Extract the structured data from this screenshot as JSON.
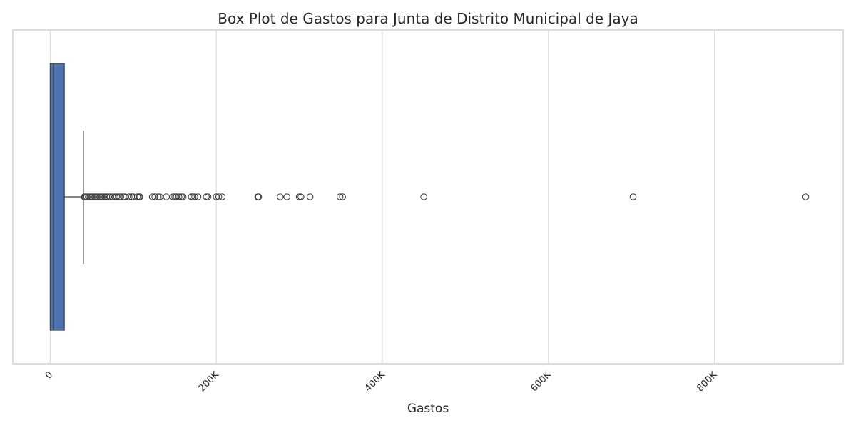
{
  "chart_data": {
    "type": "box",
    "title": "Box Plot de Gastos para Junta de Distrito Municipal de Jaya",
    "xlabel": "Gastos",
    "ylabel": "",
    "orientation": "horizontal",
    "xlim": [
      -45000,
      955000
    ],
    "x_ticks": [
      0,
      200000,
      400000,
      600000,
      800000
    ],
    "x_tick_labels": [
      "0",
      "200K",
      "400K",
      "600K",
      "800K"
    ],
    "grid": "vertical",
    "box_color": "#4c72b0",
    "series": [
      {
        "min": 0,
        "q1": 0,
        "median": 4000,
        "q3": 17000,
        "whisker_high": 40000,
        "outliers": [
          41000,
          42000,
          44000,
          46000,
          48000,
          50000,
          52000,
          54000,
          56000,
          58000,
          60000,
          62000,
          64000,
          66000,
          68000,
          70000,
          72000,
          75000,
          78000,
          80000,
          83000,
          85000,
          88000,
          90000,
          95000,
          98000,
          100000,
          105000,
          107000,
          108000,
          123000,
          126000,
          130000,
          132000,
          140000,
          148000,
          150000,
          152000,
          155000,
          158000,
          160000,
          170000,
          172000,
          174000,
          178000,
          188000,
          190000,
          200000,
          203000,
          207000,
          250000,
          251000,
          277000,
          285000,
          300000,
          302000,
          313000,
          349000,
          352000,
          450000,
          702000,
          910000
        ]
      }
    ]
  }
}
